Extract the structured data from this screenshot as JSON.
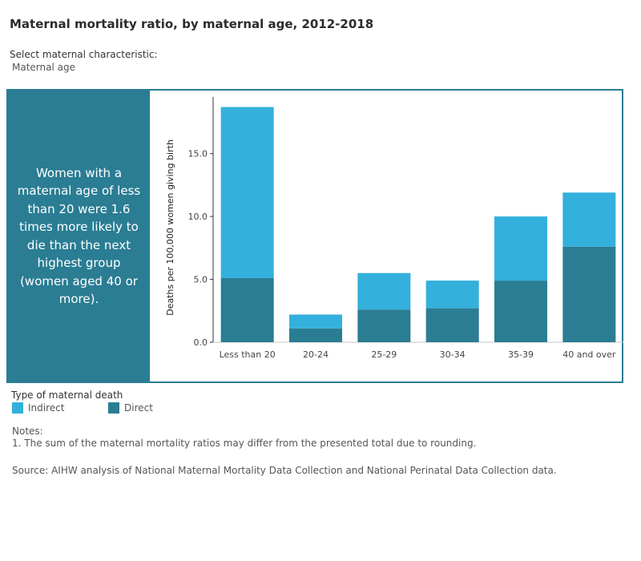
{
  "page": {
    "title": "Maternal mortality ratio, by maternal age, 2012-2018",
    "filter_label": "Select maternal characteristic:",
    "filter_value": "Maternal age"
  },
  "callout": {
    "text": "Women with a maternal age of less than 20 were 1.6 times more likely to die than the next highest group (women aged 40 or more)."
  },
  "legend": {
    "title": "Type of maternal death",
    "items": [
      {
        "label": "Indirect",
        "color": "#34b0dc"
      },
      {
        "label": "Direct",
        "color": "#2a7d93"
      }
    ]
  },
  "notes": {
    "title": "Notes:",
    "items": [
      "1. The sum of the maternal mortality ratios may differ from the presented total due to rounding."
    ]
  },
  "source": "Source: AIHW analysis of National Maternal Mortality Data Collection and National Perinatal Data Collection data.",
  "chart_data": {
    "type": "bar",
    "stacked": true,
    "categories": [
      "Less than 20",
      "20-24",
      "25-29",
      "30-34",
      "35-39",
      "40 and over"
    ],
    "series": [
      {
        "name": "Direct",
        "color": "#2a7d93",
        "values": [
          5.1,
          1.1,
          2.6,
          2.7,
          4.9,
          7.6
        ]
      },
      {
        "name": "Indirect",
        "color": "#34b0dc",
        "values": [
          13.6,
          1.1,
          2.9,
          2.2,
          5.1,
          4.3
        ]
      }
    ],
    "ylabel": "Deaths per 100,000 women giving birth",
    "xlabel": "",
    "ylim": [
      0,
      19.5
    ],
    "yticks": [
      0,
      5,
      10,
      15
    ],
    "ytick_labels": [
      "0.0",
      "5.0",
      "10.0",
      "15.0"
    ],
    "grid": false
  }
}
